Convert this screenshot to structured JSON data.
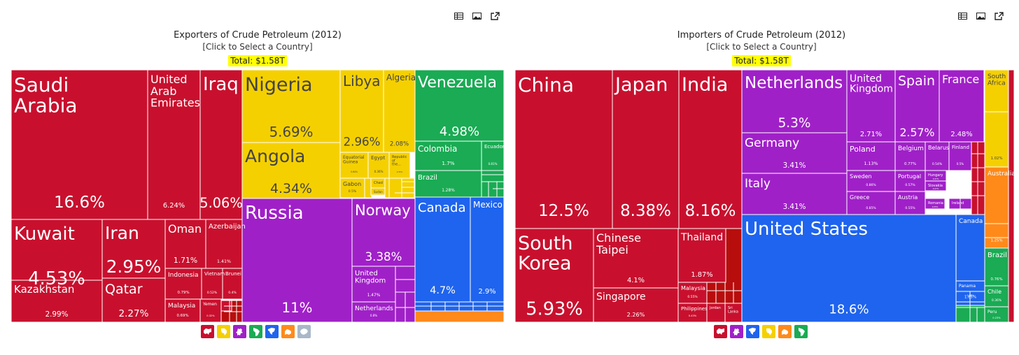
{
  "panels": [
    {
      "title": "Exporters of Crude Petroleum (2012)",
      "subtitle": "[Click to Select a Country]",
      "total": "Total: $1.58T",
      "tool_icons": [
        "table-icon",
        "image-icon",
        "external-link-icon"
      ],
      "legend": [
        {
          "icon": "asia-icon",
          "color": "#c8102e"
        },
        {
          "icon": "africa-icon",
          "color": "#f5d000"
        },
        {
          "icon": "europe-icon",
          "color": "#a020c8"
        },
        {
          "icon": "south-america-icon",
          "color": "#1aab54"
        },
        {
          "icon": "north-america-icon",
          "color": "#1f64ee"
        },
        {
          "icon": "oceania-icon",
          "color": "#ff8a1a"
        },
        {
          "icon": "antarctica-icon",
          "color": "#a8b8c8"
        }
      ]
    },
    {
      "title": "Importers of Crude Petroleum (2012)",
      "subtitle": "[Click to Select a Country]",
      "total": "Total: $1.58T",
      "tool_icons": [
        "table-icon",
        "image-icon",
        "external-link-icon"
      ],
      "legend": [
        {
          "icon": "asia-icon",
          "color": "#c8102e"
        },
        {
          "icon": "europe-icon",
          "color": "#a020c8"
        },
        {
          "icon": "north-america-icon",
          "color": "#1f64ee"
        },
        {
          "icon": "africa-icon",
          "color": "#f5d000"
        },
        {
          "icon": "oceania-icon",
          "color": "#ff8a1a"
        },
        {
          "icon": "south-america-icon",
          "color": "#1aab54"
        }
      ]
    }
  ],
  "chart_data": [
    {
      "type": "treemap",
      "title": "Exporters of Crude Petroleum (2012)",
      "total": "$1.58T",
      "unit": "share of world exports (%)",
      "region_colors": {
        "asia": "#c8102e",
        "africa": "#f5d000",
        "europe": "#a020c8",
        "south-america": "#1aab54",
        "north-america": "#1f64ee",
        "oceania": "#ff8a1a"
      },
      "items": [
        {
          "name": "Saudi Arabia",
          "value": 16.6,
          "region": "asia"
        },
        {
          "name": "United Arab Emirates",
          "value": 6.24,
          "region": "asia"
        },
        {
          "name": "Iraq",
          "value": 5.06,
          "region": "asia"
        },
        {
          "name": "Kuwait",
          "value": 4.53,
          "region": "asia"
        },
        {
          "name": "Kazakhstan",
          "value": 2.99,
          "region": "asia"
        },
        {
          "name": "Iran",
          "value": 2.95,
          "region": "asia"
        },
        {
          "name": "Qatar",
          "value": 2.27,
          "region": "asia"
        },
        {
          "name": "Oman",
          "value": 1.71,
          "region": "asia"
        },
        {
          "name": "Azerbaijan",
          "value": 1.41,
          "region": "asia"
        },
        {
          "name": "Indonesia",
          "value": 0.79,
          "region": "asia"
        },
        {
          "name": "Vietnam",
          "value": 0.52,
          "region": "asia"
        },
        {
          "name": "Brunei",
          "value": 0.4,
          "region": "asia"
        },
        {
          "name": "Malaysia",
          "value": 0.69,
          "region": "asia"
        },
        {
          "name": "Yemen",
          "value": 0.32,
          "region": "asia"
        },
        {
          "name": "Nigeria",
          "value": 5.69,
          "region": "africa"
        },
        {
          "name": "Angola",
          "value": 4.34,
          "region": "africa"
        },
        {
          "name": "Libya",
          "value": 2.96,
          "region": "africa"
        },
        {
          "name": "Algeria",
          "value": 2.08,
          "region": "africa"
        },
        {
          "name": "Equatorial Guinea",
          "value": 0.64,
          "region": "africa"
        },
        {
          "name": "Egypt",
          "value": 0.36,
          "region": "africa"
        },
        {
          "name": "Republic of the...",
          "value": 0.35,
          "region": "africa"
        },
        {
          "name": "Gabon",
          "value": 0.5,
          "region": "africa"
        },
        {
          "name": "Chad",
          "value": null,
          "region": "africa"
        },
        {
          "name": "Sudan",
          "value": null,
          "region": "africa"
        },
        {
          "name": "Russia",
          "value": 11,
          "region": "europe"
        },
        {
          "name": "Norway",
          "value": 3.38,
          "region": "europe"
        },
        {
          "name": "United Kingdom",
          "value": 1.47,
          "region": "europe"
        },
        {
          "name": "Netherlands",
          "value": 0.8,
          "region": "europe"
        },
        {
          "name": "Venezuela",
          "value": 4.98,
          "region": "south-america"
        },
        {
          "name": "Colombia",
          "value": 1.7,
          "region": "south-america"
        },
        {
          "name": "Ecuador",
          "value": 0.81,
          "region": "south-america"
        },
        {
          "name": "Brazil",
          "value": 1.28,
          "region": "south-america"
        },
        {
          "name": "Canada",
          "value": 4.7,
          "region": "north-america"
        },
        {
          "name": "Mexico",
          "value": 2.9,
          "region": "north-america"
        }
      ]
    },
    {
      "type": "treemap",
      "title": "Importers of Crude Petroleum (2012)",
      "total": "$1.58T",
      "unit": "share of world imports (%)",
      "region_colors": {
        "asia": "#c8102e",
        "africa": "#f5d000",
        "europe": "#a020c8",
        "south-america": "#1aab54",
        "north-america": "#1f64ee",
        "oceania": "#ff8a1a"
      },
      "items": [
        {
          "name": "China",
          "value": 12.5,
          "region": "asia"
        },
        {
          "name": "Japan",
          "value": 8.38,
          "region": "asia"
        },
        {
          "name": "India",
          "value": 8.16,
          "region": "asia"
        },
        {
          "name": "South Korea",
          "value": 5.93,
          "region": "asia"
        },
        {
          "name": "Chinese Taipei",
          "value": 4.1,
          "region": "asia"
        },
        {
          "name": "Singapore",
          "value": 2.26,
          "region": "asia"
        },
        {
          "name": "Thailand",
          "value": 1.87,
          "region": "asia"
        },
        {
          "name": "Malaysia",
          "value": 0.55,
          "region": "asia"
        },
        {
          "name": "Philippines",
          "value": 0.43,
          "region": "asia"
        },
        {
          "name": "Jordan",
          "value": null,
          "region": "asia"
        },
        {
          "name": "Sri Lanka",
          "value": null,
          "region": "asia"
        },
        {
          "name": "Netherlands",
          "value": 5.3,
          "region": "europe"
        },
        {
          "name": "Germany",
          "value": 3.41,
          "region": "europe"
        },
        {
          "name": "Italy",
          "value": 3.41,
          "region": "europe"
        },
        {
          "name": "United Kingdom",
          "value": 2.71,
          "region": "europe"
        },
        {
          "name": "Spain",
          "value": 2.57,
          "region": "europe"
        },
        {
          "name": "France",
          "value": 2.48,
          "region": "europe"
        },
        {
          "name": "Poland",
          "value": 1.13,
          "region": "europe"
        },
        {
          "name": "Belgium",
          "value": 0.77,
          "region": "europe"
        },
        {
          "name": "Belarus",
          "value": 0.54,
          "region": "europe"
        },
        {
          "name": "Finland",
          "value": 0.5,
          "region": "europe"
        },
        {
          "name": "Sweden",
          "value": 0.86,
          "region": "europe"
        },
        {
          "name": "Portugal",
          "value": 0.57,
          "region": "europe"
        },
        {
          "name": "Hungary",
          "value": 0.37,
          "region": "europe"
        },
        {
          "name": "Slovakia",
          "value": 0.27,
          "region": "europe"
        },
        {
          "name": "Greece",
          "value": 0.85,
          "region": "europe"
        },
        {
          "name": "Austria",
          "value": 0.55,
          "region": "europe"
        },
        {
          "name": "Romania",
          "value": 0.25,
          "region": "europe"
        },
        {
          "name": "Ireland",
          "value": null,
          "region": "europe"
        },
        {
          "name": "United States",
          "value": 18.6,
          "region": "north-america"
        },
        {
          "name": "Canada",
          "value": 1.65,
          "region": "north-america"
        },
        {
          "name": "Panama",
          "value": 0.28,
          "region": "north-america"
        },
        {
          "name": "South Africa",
          "value": 1.02,
          "region": "africa"
        },
        {
          "name": "Australia",
          "value": 1.25,
          "region": "oceania"
        },
        {
          "name": "Brazil",
          "value": 0.76,
          "region": "south-america"
        },
        {
          "name": "Chile",
          "value": 0.36,
          "region": "south-america"
        },
        {
          "name": "Peru",
          "value": 0.23,
          "region": "south-america"
        }
      ]
    }
  ]
}
